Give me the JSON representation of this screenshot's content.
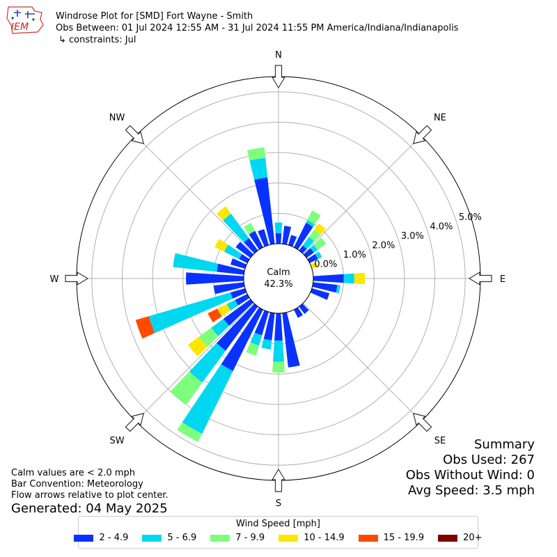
{
  "header": {
    "title": "Windrose Plot for [SMD] Fort Wayne - Smith",
    "obs_between": "Obs Between: 01 Jul 2024 12:55 AM - 31 Jul 2024 11:55 PM America/Indiana/Indianapolis",
    "constraints": "↳ constraints: Jul"
  },
  "logo": {
    "text": "IEM"
  },
  "summary": {
    "heading": "Summary",
    "obs_used": "Obs Used: 267",
    "obs_without_wind": "Obs Without Wind: 0",
    "avg_speed": "Avg Speed: 3.5 mph"
  },
  "notes": {
    "calm_note": "Calm values are < 2.0 mph",
    "bar_convention": "Bar Convention: Meteorology",
    "flow_arrows": "Flow arrows relative to plot center.",
    "generated": "Generated: 04 May 2025"
  },
  "colors": {
    "speed_bins": [
      "#0a32ff",
      "#00d7f0",
      "#7dff7d",
      "#ffe600",
      "#ff4b00",
      "#800000"
    ],
    "grid": "#b0b0b0",
    "outline": "#000000"
  },
  "chart_data": {
    "type": "windrose",
    "calm_label": "Calm",
    "calm_value": "42.3%",
    "radial_unit": "%",
    "radial_ticks": [
      "0.0%",
      "1.0%",
      "2.0%",
      "3.0%",
      "4.0%",
      "5.0%"
    ],
    "rmax": 5.5,
    "direction_labels": [
      "N",
      "NE",
      "E",
      "SE",
      "S",
      "SW",
      "W",
      "NW"
    ],
    "legend_title": "Wind Speed [mph]",
    "speed_bins": [
      "2 - 4.9",
      "5 - 6.9",
      "7 - 9.9",
      "10 - 14.9",
      "15 - 19.9",
      "20+"
    ],
    "bar_direction_step_deg": 10,
    "sectors": [
      {
        "dir": 0,
        "values": [
          0.35,
          0.35,
          0.0,
          0.0,
          0.0,
          0.0
        ]
      },
      {
        "dir": 10,
        "values": [
          0.6,
          0.0,
          0.0,
          0.0,
          0.0,
          0.0
        ]
      },
      {
        "dir": 20,
        "values": [
          0.35,
          0.0,
          0.0,
          0.0,
          0.0,
          0.0
        ]
      },
      {
        "dir": 30,
        "values": [
          0.9,
          0.1,
          0.35,
          0.0,
          0.0,
          0.0
        ]
      },
      {
        "dir": 40,
        "values": [
          0.2,
          0.35,
          0.3,
          0.25,
          0.0,
          0.0
        ]
      },
      {
        "dir": 50,
        "values": [
          0.3,
          0.15,
          0.35,
          0.0,
          0.0,
          0.0
        ]
      },
      {
        "dir": 60,
        "values": [
          0.3,
          0.15,
          0.0,
          0.0,
          0.0,
          0.0
        ]
      },
      {
        "dir": 70,
        "values": [
          0.0,
          0.0,
          0.0,
          0.2,
          0.0,
          0.0
        ]
      },
      {
        "dir": 90,
        "values": [
          1.0,
          0.35,
          0.0,
          0.35,
          0.0,
          0.0
        ]
      },
      {
        "dir": 100,
        "values": [
          0.8,
          0.1,
          0.0,
          0.0,
          0.0,
          0.0
        ]
      },
      {
        "dir": 110,
        "values": [
          0.6,
          0.0,
          0.0,
          0.0,
          0.0,
          0.0
        ]
      },
      {
        "dir": 140,
        "values": [
          0.3,
          0.0,
          0.0,
          0.0,
          0.0,
          0.0
        ]
      },
      {
        "dir": 150,
        "values": [
          0.3,
          0.0,
          0.0,
          0.0,
          0.0,
          0.0
        ]
      },
      {
        "dir": 170,
        "values": [
          1.8,
          0.0,
          0.0,
          0.0,
          0.0,
          0.0
        ]
      },
      {
        "dir": 180,
        "values": [
          0.9,
          0.7,
          0.35,
          0.0,
          0.0,
          0.0
        ]
      },
      {
        "dir": 190,
        "values": [
          0.9,
          0.3,
          0.0,
          0.0,
          0.0,
          0.0
        ]
      },
      {
        "dir": 200,
        "values": [
          0.8,
          0.35,
          0.35,
          0.0,
          0.0,
          0.0
        ]
      },
      {
        "dir": 210,
        "values": [
          2.25,
          2.3,
          0.3,
          0.0,
          0.0,
          0.0
        ]
      },
      {
        "dir": 220,
        "values": [
          1.8,
          1.3,
          0.9,
          0.0,
          0.0,
          0.0
        ]
      },
      {
        "dir": 230,
        "values": [
          1.1,
          0.5,
          0.5,
          0.45,
          0.0,
          0.0
        ]
      },
      {
        "dir": 240,
        "values": [
          0.45,
          0.3,
          0.0,
          0.35,
          0.35,
          0.0
        ]
      },
      {
        "dir": 250,
        "values": [
          0.5,
          2.8,
          0.0,
          0.0,
          0.45,
          0.0
        ]
      },
      {
        "dir": 260,
        "values": [
          1.0,
          0.0,
          0.0,
          0.0,
          0.0,
          0.0
        ]
      },
      {
        "dir": 270,
        "values": [
          1.9,
          0.0,
          0.0,
          0.0,
          0.0,
          0.0
        ]
      },
      {
        "dir": 280,
        "values": [
          0.9,
          1.45,
          0.0,
          0.0,
          0.0,
          0.0
        ]
      },
      {
        "dir": 290,
        "values": [
          0.5,
          0.0,
          0.0,
          0.0,
          0.0,
          0.0
        ]
      },
      {
        "dir": 300,
        "values": [
          0.3,
          0.55,
          0.0,
          0.35,
          0.0,
          0.0
        ]
      },
      {
        "dir": 310,
        "values": [
          0.6,
          0.0,
          0.0,
          0.0,
          0.0,
          0.0
        ]
      },
      {
        "dir": 320,
        "values": [
          0.5,
          1.0,
          0.0,
          0.3,
          0.0,
          0.0
        ]
      },
      {
        "dir": 330,
        "values": [
          0.6,
          0.0,
          0.3,
          0.0,
          0.0,
          0.0
        ]
      },
      {
        "dir": 340,
        "values": [
          0.55,
          0.0,
          0.0,
          0.0,
          0.0,
          0.0
        ]
      },
      {
        "dir": 350,
        "values": [
          2.2,
          0.65,
          0.35,
          0.0,
          0.0,
          0.0
        ]
      }
    ]
  }
}
